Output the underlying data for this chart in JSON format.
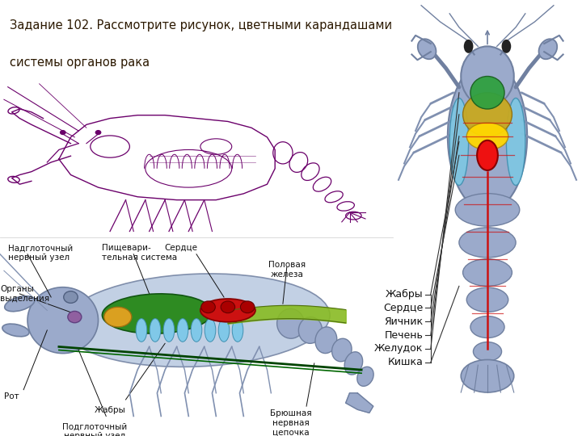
{
  "title_line1": "Задание 102. Рассмотрите рисунок, цветными карандашами",
  "title_line2": "системы органов рака",
  "header_bg": "#C8951A",
  "header_text_color": "#2B1800",
  "body_bg": "#FFFFFF",
  "labels_right": [
    "Жабры",
    "Сердце",
    "Яичник",
    "Печень",
    "Желудок",
    "Кишка"
  ],
  "outline_col": "#6B006B",
  "body_col": "#9BAACB",
  "gills_col": "#7EC8E3",
  "heart_col": "#CC0000",
  "liver_col": "#DAA520",
  "digestive_col": "#228B22",
  "ovary_col": "#FFD700",
  "nerve_col": "#007700",
  "fig_width": 7.2,
  "fig_height": 5.4,
  "dpi": 100
}
